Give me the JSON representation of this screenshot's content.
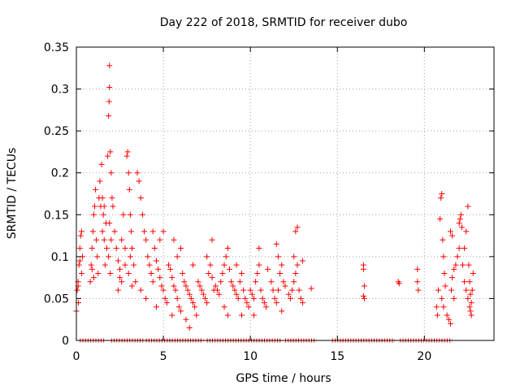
{
  "chart_data": {
    "type": "scatter",
    "title": "Day 222 of 2018, SRMTID for receiver dubo",
    "xlabel": "GPS time / hours",
    "ylabel": "SRMTID / TECUs",
    "xlim": [
      0,
      24
    ],
    "ylim": [
      0,
      0.35
    ],
    "xticks": [
      0,
      5,
      10,
      15,
      20
    ],
    "xtick_labels": [
      "0",
      "5",
      "10",
      "15",
      "20"
    ],
    "yticks": [
      0,
      0.05,
      0.1,
      0.15,
      0.2,
      0.25,
      0.3,
      0.35
    ],
    "ytick_labels": [
      "0",
      "0.05",
      "0.1",
      "0.15",
      "0.2",
      "0.25",
      "0.3",
      "0.35"
    ],
    "grid": true,
    "marker": "+",
    "series": [
      {
        "name": "SRMTID",
        "color": "#ff0000",
        "points": [
          [
            0.0,
            0.035
          ],
          [
            0.05,
            0.06
          ],
          [
            0.1,
            0.07
          ],
          [
            0.12,
            0.045
          ],
          [
            0.15,
            0.09
          ],
          [
            0.2,
            0.11
          ],
          [
            0.25,
            0.125
          ],
          [
            0.3,
            0.13
          ],
          [
            0.3,
            0.08
          ],
          [
            0.35,
            0.1
          ],
          [
            0.1,
            0.065
          ],
          [
            0.2,
            0.095
          ],
          [
            0.8,
            0.07
          ],
          [
            0.85,
            0.09
          ],
          [
            0.9,
            0.11
          ],
          [
            0.95,
            0.13
          ],
          [
            1.0,
            0.15
          ],
          [
            1.05,
            0.16
          ],
          [
            1.1,
            0.18
          ],
          [
            1.15,
            0.12
          ],
          [
            1.2,
            0.1
          ],
          [
            1.25,
            0.08
          ],
          [
            1.0,
            0.075
          ],
          [
            0.9,
            0.085
          ],
          [
            1.3,
            0.17
          ],
          [
            1.35,
            0.19
          ],
          [
            1.4,
            0.16
          ],
          [
            1.45,
            0.21
          ],
          [
            1.5,
            0.17
          ],
          [
            1.55,
            0.15
          ],
          [
            1.6,
            0.12
          ],
          [
            1.65,
            0.09
          ],
          [
            1.7,
            0.14
          ],
          [
            1.75,
            0.11
          ],
          [
            1.5,
            0.13
          ],
          [
            1.6,
            0.16
          ],
          [
            1.8,
            0.22
          ],
          [
            1.85,
            0.268
          ],
          [
            1.88,
            0.285
          ],
          [
            1.9,
            0.302
          ],
          [
            1.9,
            0.328
          ],
          [
            1.95,
            0.225
          ],
          [
            2.0,
            0.2
          ],
          [
            2.05,
            0.17
          ],
          [
            1.9,
            0.14
          ],
          [
            2.0,
            0.12
          ],
          [
            1.85,
            0.1
          ],
          [
            1.95,
            0.08
          ],
          [
            2.1,
            0.16
          ],
          [
            2.2,
            0.13
          ],
          [
            2.3,
            0.11
          ],
          [
            2.4,
            0.095
          ],
          [
            2.5,
            0.085
          ],
          [
            2.6,
            0.12
          ],
          [
            2.7,
            0.15
          ],
          [
            2.8,
            0.11
          ],
          [
            2.5,
            0.075
          ],
          [
            2.6,
            0.07
          ],
          [
            2.4,
            0.06
          ],
          [
            2.8,
            0.09
          ],
          [
            2.9,
            0.22
          ],
          [
            2.95,
            0.225
          ],
          [
            3.0,
            0.2
          ],
          [
            3.05,
            0.18
          ],
          [
            3.1,
            0.15
          ],
          [
            3.15,
            0.13
          ],
          [
            3.2,
            0.11
          ],
          [
            3.3,
            0.09
          ],
          [
            3.4,
            0.07
          ],
          [
            3.0,
            0.08
          ],
          [
            3.2,
            0.065
          ],
          [
            3.1,
            0.1
          ],
          [
            3.5,
            0.2
          ],
          [
            3.6,
            0.19
          ],
          [
            3.7,
            0.17
          ],
          [
            3.8,
            0.15
          ],
          [
            3.9,
            0.13
          ],
          [
            4.0,
            0.12
          ],
          [
            4.1,
            0.1
          ],
          [
            4.2,
            0.09
          ],
          [
            4.3,
            0.08
          ],
          [
            4.4,
            0.07
          ],
          [
            3.7,
            0.06
          ],
          [
            4.0,
            0.05
          ],
          [
            4.5,
            0.11
          ],
          [
            4.6,
            0.095
          ],
          [
            4.7,
            0.085
          ],
          [
            4.8,
            0.075
          ],
          [
            4.9,
            0.065
          ],
          [
            5.0,
            0.06
          ],
          [
            5.1,
            0.05
          ],
          [
            5.2,
            0.045
          ],
          [
            4.6,
            0.04
          ],
          [
            4.8,
            0.12
          ],
          [
            5.0,
            0.13
          ],
          [
            4.4,
            0.13
          ],
          [
            5.3,
            0.09
          ],
          [
            5.4,
            0.085
          ],
          [
            5.5,
            0.075
          ],
          [
            5.6,
            0.065
          ],
          [
            5.7,
            0.06
          ],
          [
            5.8,
            0.05
          ],
          [
            5.9,
            0.04
          ],
          [
            6.0,
            0.035
          ],
          [
            5.5,
            0.03
          ],
          [
            5.8,
            0.1
          ],
          [
            6.0,
            0.11
          ],
          [
            5.6,
            0.12
          ],
          [
            6.1,
            0.08
          ],
          [
            6.2,
            0.07
          ],
          [
            6.3,
            0.065
          ],
          [
            6.4,
            0.06
          ],
          [
            6.5,
            0.055
          ],
          [
            6.6,
            0.05
          ],
          [
            6.7,
            0.045
          ],
          [
            6.8,
            0.04
          ],
          [
            6.9,
            0.03
          ],
          [
            6.5,
            0.015
          ],
          [
            6.3,
            0.025
          ],
          [
            6.7,
            0.09
          ],
          [
            7.0,
            0.07
          ],
          [
            7.1,
            0.065
          ],
          [
            7.2,
            0.06
          ],
          [
            7.3,
            0.055
          ],
          [
            7.4,
            0.05
          ],
          [
            7.5,
            0.045
          ],
          [
            7.6,
            0.08
          ],
          [
            7.7,
            0.09
          ],
          [
            7.8,
            0.075
          ],
          [
            7.9,
            0.06
          ],
          [
            7.5,
            0.1
          ],
          [
            7.8,
            0.12
          ],
          [
            8.0,
            0.065
          ],
          [
            8.1,
            0.06
          ],
          [
            8.2,
            0.055
          ],
          [
            8.3,
            0.07
          ],
          [
            8.4,
            0.08
          ],
          [
            8.5,
            0.09
          ],
          [
            8.6,
            0.1
          ],
          [
            8.7,
            0.11
          ],
          [
            8.8,
            0.085
          ],
          [
            8.9,
            0.07
          ],
          [
            8.5,
            0.04
          ],
          [
            8.7,
            0.03
          ],
          [
            9.0,
            0.065
          ],
          [
            9.1,
            0.06
          ],
          [
            9.2,
            0.055
          ],
          [
            9.3,
            0.05
          ],
          [
            9.4,
            0.07
          ],
          [
            9.5,
            0.08
          ],
          [
            9.6,
            0.06
          ],
          [
            9.7,
            0.05
          ],
          [
            9.8,
            0.045
          ],
          [
            9.9,
            0.04
          ],
          [
            9.5,
            0.03
          ],
          [
            9.2,
            0.09
          ],
          [
            10.0,
            0.06
          ],
          [
            10.1,
            0.055
          ],
          [
            10.2,
            0.05
          ],
          [
            10.3,
            0.07
          ],
          [
            10.4,
            0.08
          ],
          [
            10.5,
            0.09
          ],
          [
            10.6,
            0.06
          ],
          [
            10.7,
            0.05
          ],
          [
            10.8,
            0.045
          ],
          [
            10.9,
            0.04
          ],
          [
            10.2,
            0.03
          ],
          [
            10.5,
            0.11
          ],
          [
            11.0,
            0.085
          ],
          [
            11.2,
            0.07
          ],
          [
            11.3,
            0.06
          ],
          [
            11.4,
            0.05
          ],
          [
            11.5,
            0.045
          ],
          [
            11.6,
            0.06
          ],
          [
            11.7,
            0.08
          ],
          [
            11.8,
            0.09
          ],
          [
            11.9,
            0.07
          ],
          [
            11.5,
            0.115
          ],
          [
            11.8,
            0.035
          ],
          [
            11.6,
            0.1
          ],
          [
            12.0,
            0.065
          ],
          [
            12.2,
            0.055
          ],
          [
            12.3,
            0.05
          ],
          [
            12.4,
            0.06
          ],
          [
            12.5,
            0.07
          ],
          [
            12.6,
            0.08
          ],
          [
            12.7,
            0.09
          ],
          [
            12.8,
            0.06
          ],
          [
            12.9,
            0.05
          ],
          [
            13.0,
            0.045
          ],
          [
            12.6,
            0.13
          ],
          [
            12.7,
            0.135
          ],
          [
            12.5,
            0.1
          ],
          [
            13.0,
            0.095
          ],
          [
            13.5,
            0.062
          ],
          [
            16.5,
            0.09
          ],
          [
            16.5,
            0.085
          ],
          [
            16.55,
            0.065
          ],
          [
            16.5,
            0.053
          ],
          [
            16.55,
            0.05
          ],
          [
            18.5,
            0.07
          ],
          [
            18.55,
            0.068
          ],
          [
            19.6,
            0.085
          ],
          [
            19.65,
            0.06
          ],
          [
            19.6,
            0.07
          ],
          [
            20.7,
            0.04
          ],
          [
            20.75,
            0.03
          ],
          [
            20.8,
            0.06
          ],
          [
            20.9,
            0.145
          ],
          [
            20.95,
            0.17
          ],
          [
            21.0,
            0.175
          ],
          [
            21.05,
            0.12
          ],
          [
            21.1,
            0.1
          ],
          [
            21.15,
            0.08
          ],
          [
            21.2,
            0.065
          ],
          [
            21.0,
            0.05
          ],
          [
            21.1,
            0.04
          ],
          [
            21.3,
            0.03
          ],
          [
            21.4,
            0.025
          ],
          [
            21.5,
            0.02
          ],
          [
            21.55,
            0.06
          ],
          [
            21.6,
            0.075
          ],
          [
            21.7,
            0.085
          ],
          [
            21.8,
            0.09
          ],
          [
            21.9,
            0.1
          ],
          [
            22.0,
            0.11
          ],
          [
            21.6,
            0.125
          ],
          [
            21.5,
            0.13
          ],
          [
            21.7,
            0.05
          ],
          [
            22.0,
            0.14
          ],
          [
            22.05,
            0.145
          ],
          [
            22.1,
            0.15
          ],
          [
            22.15,
            0.135
          ],
          [
            22.2,
            0.09
          ],
          [
            22.3,
            0.07
          ],
          [
            22.4,
            0.06
          ],
          [
            22.5,
            0.05
          ],
          [
            22.6,
            0.04
          ],
          [
            22.5,
            0.16
          ],
          [
            22.3,
            0.11
          ],
          [
            22.4,
            0.13
          ],
          [
            22.6,
            0.07
          ],
          [
            22.65,
            0.035
          ],
          [
            22.7,
            0.045
          ],
          [
            22.75,
            0.06
          ],
          [
            22.8,
            0.08
          ],
          [
            22.7,
            0.03
          ],
          [
            22.65,
            0.055
          ],
          [
            22.55,
            0.09
          ]
        ]
      }
    ],
    "zero_value_ranges": [
      [
        0.2,
        1.6
      ],
      [
        2.0,
        3.9
      ],
      [
        4.0,
        7.3
      ],
      [
        7.5,
        11.8
      ],
      [
        12.0,
        13.8
      ],
      [
        14.7,
        18.3
      ],
      [
        18.6,
        21.6
      ]
    ]
  }
}
